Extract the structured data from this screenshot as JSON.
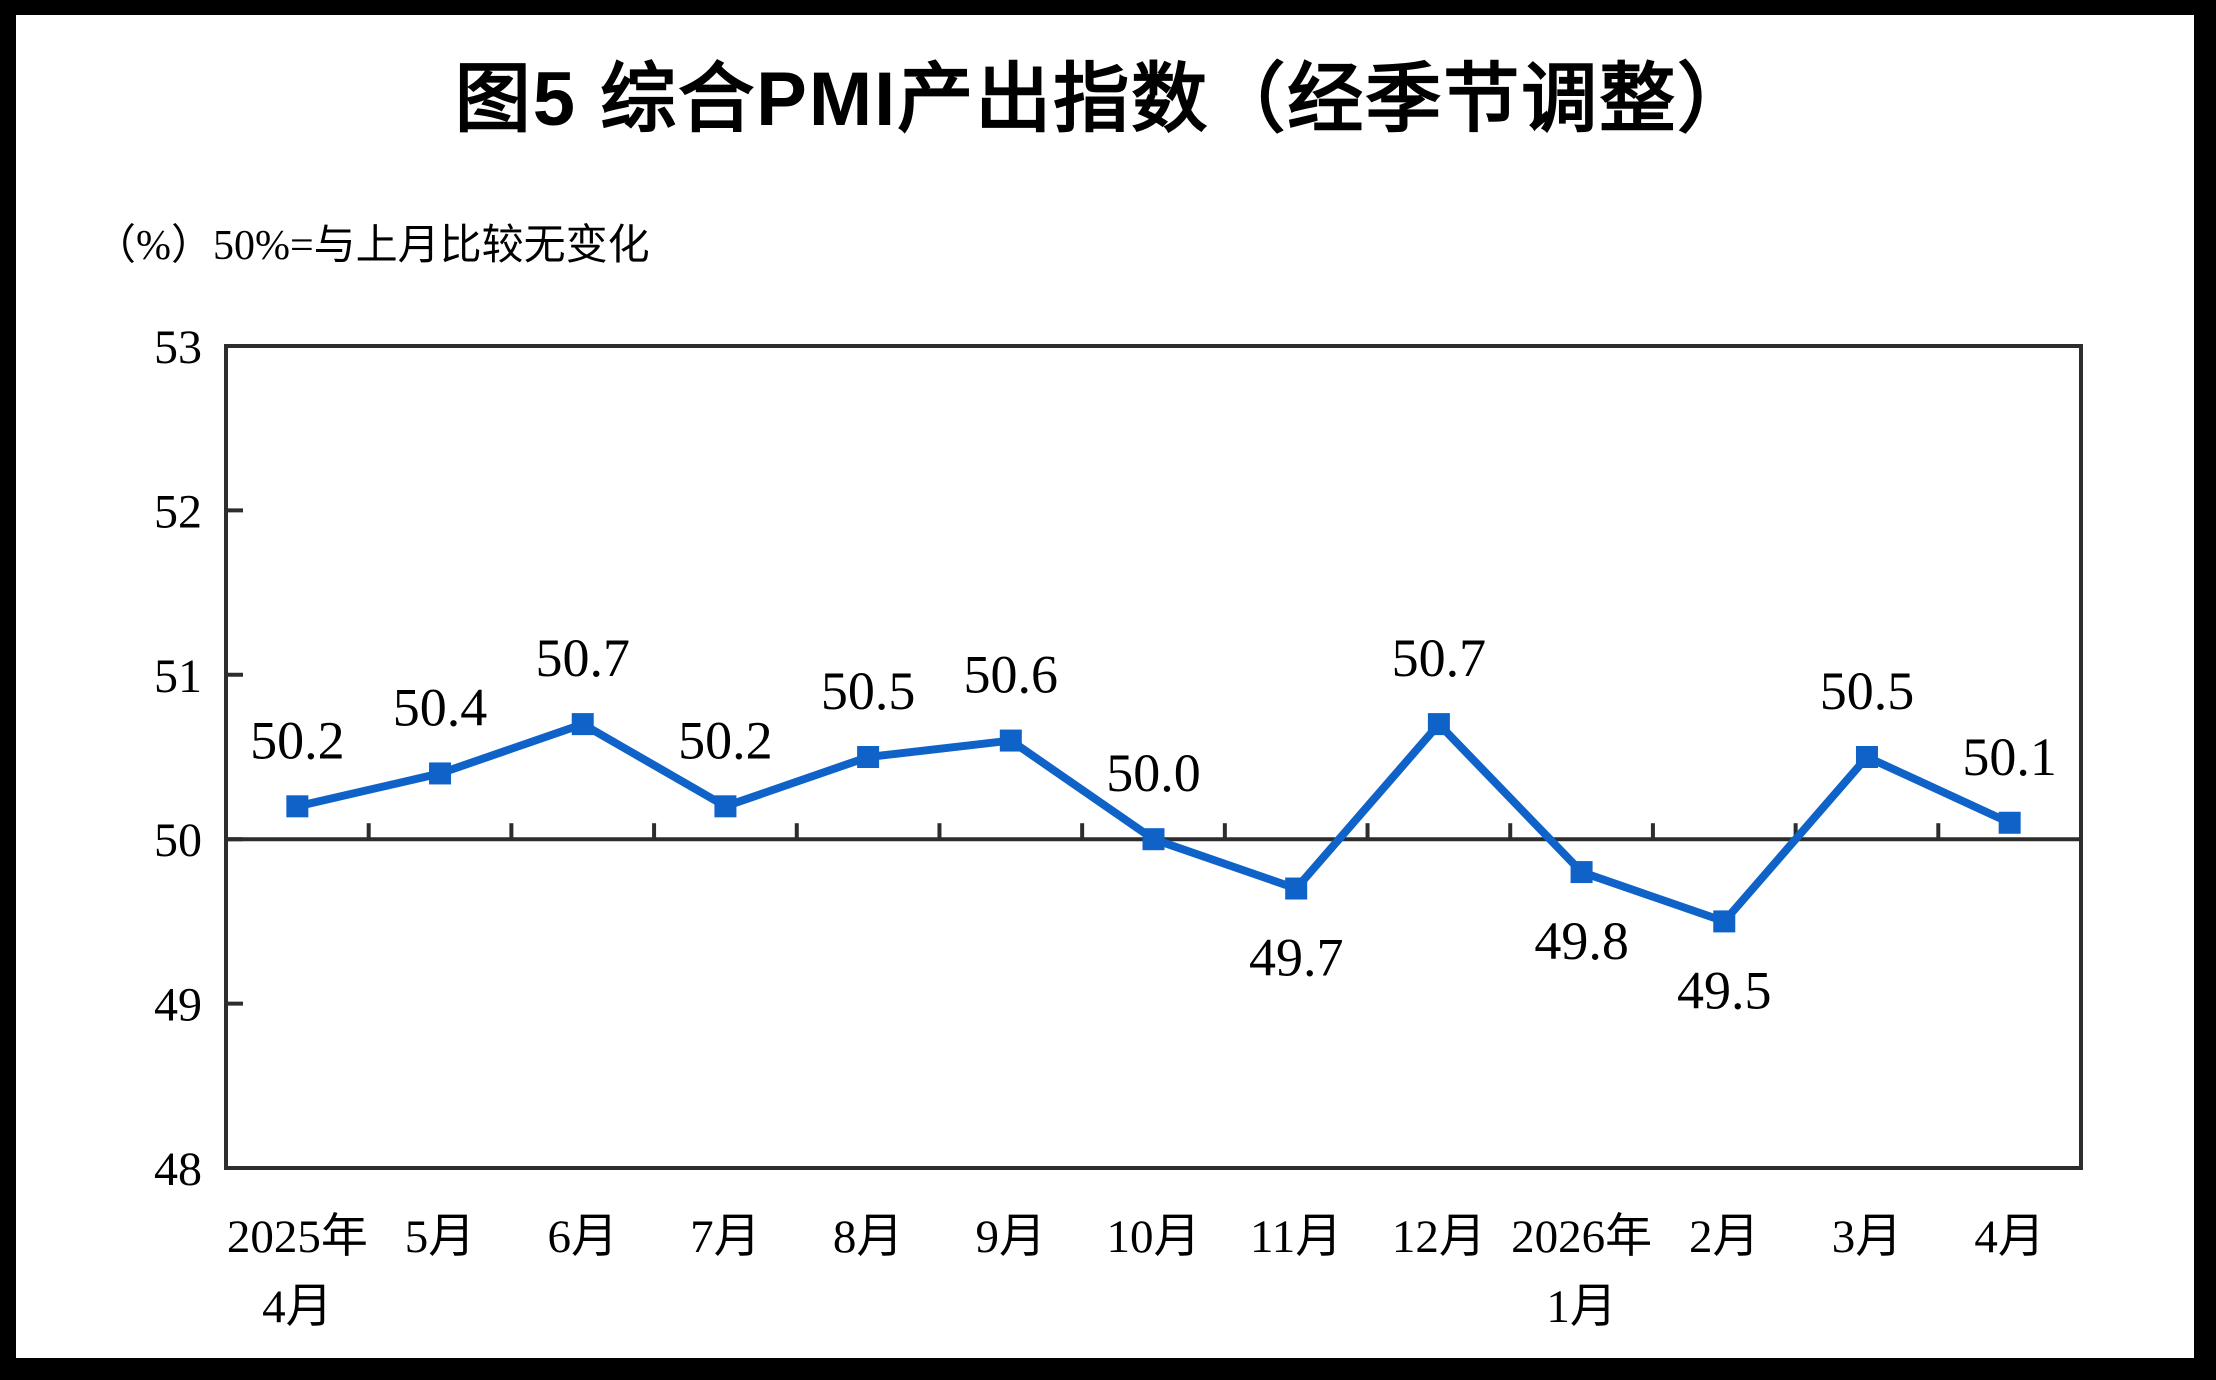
{
  "page": {
    "background_color": "#ffffff",
    "frame_color": "#000000"
  },
  "title": "图5 综合PMI产出指数（经季节调整）",
  "subtitle": "（%）50%=与上月比较无变化",
  "chart_data": {
    "type": "line",
    "series": [
      {
        "name": "综合PMI产出指数",
        "values": [
          50.2,
          50.4,
          50.7,
          50.2,
          50.5,
          50.6,
          50.0,
          49.7,
          50.7,
          49.8,
          49.5,
          50.5,
          50.1
        ]
      }
    ],
    "data_labels": [
      "50.2",
      "50.4",
      "50.7",
      "50.2",
      "50.5",
      "50.6",
      "50.0",
      "49.7",
      "50.7",
      "49.8",
      "49.5",
      "50.5",
      "50.1"
    ],
    "categories": [
      [
        "2025年",
        "4月"
      ],
      [
        "5月"
      ],
      [
        "6月"
      ],
      [
        "7月"
      ],
      [
        "8月"
      ],
      [
        "9月"
      ],
      [
        "10月"
      ],
      [
        "11月"
      ],
      [
        "12月"
      ],
      [
        "2026年",
        "1月"
      ],
      [
        "2月"
      ],
      [
        "3月"
      ],
      [
        "4月"
      ]
    ],
    "ylabel": "",
    "xlabel": "",
    "ylim": [
      48,
      53
    ],
    "yticks": [
      48,
      49,
      50,
      51,
      52,
      53
    ],
    "baseline_value": 50,
    "grid": false,
    "legend_position": "none",
    "line_color": "#0F63C8",
    "marker_shape": "square",
    "axis_color": "#2D2D2D",
    "label_rule": "labels below marker when value < 50, above otherwise"
  }
}
